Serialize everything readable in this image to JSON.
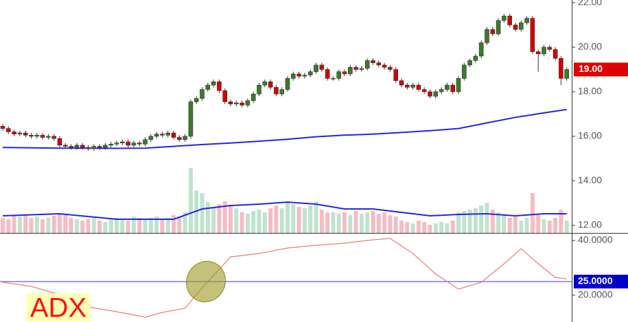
{
  "chart_data": [
    {
      "type": "candlestick",
      "open": [
        16.45,
        16.35,
        16.2,
        16.1,
        16.15,
        16.05,
        16.0,
        16.05,
        15.95,
        16.0,
        15.9,
        15.6,
        15.55,
        15.5,
        15.6,
        15.5,
        15.45,
        15.55,
        15.5,
        15.6,
        15.65,
        15.7,
        15.75,
        15.6,
        15.7,
        15.65,
        15.85,
        16.0,
        16.1,
        16.05,
        16.15,
        15.95,
        15.85,
        16.0,
        17.55,
        17.7,
        18.1,
        18.3,
        18.45,
        18.05,
        17.55,
        17.45,
        17.5,
        17.4,
        17.6,
        17.9,
        18.3,
        18.45,
        18.2,
        17.9,
        18.1,
        18.6,
        18.8,
        18.7,
        18.75,
        18.9,
        19.2,
        19.0,
        18.6,
        18.6,
        18.9,
        18.8,
        19.1,
        19.0,
        19.05,
        19.4,
        19.3,
        19.2,
        19.1,
        19.0,
        18.5,
        18.3,
        18.2,
        18.3,
        18.1,
        18.0,
        17.8,
        18.0,
        18.1,
        18.3,
        18.0,
        18.6,
        19.2,
        19.4,
        19.6,
        20.2,
        20.8,
        20.6,
        21.2,
        21.4,
        21.0,
        20.8,
        21.1,
        21.3,
        19.8,
        19.7,
        20.0,
        19.9,
        19.5,
        18.6
      ],
      "high": [
        16.55,
        16.45,
        16.3,
        16.25,
        16.25,
        16.15,
        16.15,
        16.15,
        16.1,
        16.1,
        16.0,
        15.7,
        15.65,
        15.7,
        15.7,
        15.6,
        15.65,
        15.65,
        15.7,
        15.75,
        15.8,
        15.85,
        15.85,
        15.8,
        15.8,
        15.95,
        16.1,
        16.2,
        16.2,
        16.25,
        16.25,
        16.05,
        16.1,
        17.65,
        17.8,
        18.2,
        18.4,
        18.55,
        18.55,
        18.15,
        17.65,
        17.6,
        17.6,
        17.7,
        18.0,
        18.4,
        18.55,
        18.55,
        18.3,
        18.2,
        18.7,
        18.9,
        18.9,
        18.85,
        19.0,
        19.3,
        19.3,
        19.1,
        18.7,
        19.0,
        19.0,
        19.2,
        19.2,
        19.15,
        19.5,
        19.5,
        19.4,
        19.3,
        19.2,
        19.1,
        18.6,
        18.4,
        18.4,
        18.4,
        18.2,
        18.1,
        18.1,
        18.2,
        18.4,
        18.4,
        18.7,
        19.3,
        19.5,
        19.7,
        20.3,
        20.9,
        20.9,
        21.3,
        21.5,
        21.5,
        21.1,
        21.2,
        21.4,
        21.4,
        19.9,
        20.1,
        20.1,
        20.0,
        19.6,
        19.1
      ],
      "low": [
        16.25,
        16.1,
        16.0,
        16.0,
        15.95,
        15.9,
        15.9,
        15.85,
        15.85,
        15.8,
        15.5,
        15.45,
        15.4,
        15.4,
        15.4,
        15.35,
        15.35,
        15.4,
        15.4,
        15.5,
        15.55,
        15.6,
        15.5,
        15.5,
        15.55,
        15.55,
        15.75,
        15.9,
        15.95,
        15.95,
        15.85,
        15.75,
        15.75,
        15.9,
        17.45,
        17.6,
        18.0,
        18.2,
        17.95,
        17.45,
        17.35,
        17.35,
        17.3,
        17.3,
        17.5,
        17.8,
        18.2,
        18.1,
        17.8,
        17.8,
        18.0,
        18.5,
        18.6,
        18.6,
        18.65,
        18.8,
        18.9,
        18.5,
        18.5,
        18.5,
        18.7,
        18.7,
        18.9,
        18.9,
        18.95,
        19.2,
        19.1,
        19.0,
        18.9,
        18.4,
        18.2,
        18.1,
        18.1,
        18.0,
        17.9,
        17.7,
        17.7,
        17.9,
        18.0,
        17.9,
        17.9,
        18.5,
        19.1,
        19.3,
        19.5,
        20.1,
        20.5,
        20.5,
        21.1,
        20.9,
        20.7,
        20.7,
        21.0,
        19.7,
        18.9,
        19.6,
        19.8,
        19.4,
        18.3,
        18.5
      ],
      "close": [
        16.35,
        16.2,
        16.1,
        16.15,
        16.05,
        16.0,
        16.05,
        15.95,
        16.0,
        15.9,
        15.6,
        15.55,
        15.5,
        15.6,
        15.5,
        15.45,
        15.55,
        15.5,
        15.6,
        15.65,
        15.7,
        15.75,
        15.6,
        15.7,
        15.65,
        15.85,
        16.0,
        16.1,
        16.05,
        16.15,
        15.95,
        15.85,
        16.0,
        17.55,
        17.7,
        18.1,
        18.3,
        18.45,
        18.05,
        17.55,
        17.45,
        17.5,
        17.4,
        17.6,
        17.9,
        18.3,
        18.45,
        18.2,
        17.9,
        18.1,
        18.6,
        18.8,
        18.7,
        18.75,
        18.9,
        19.2,
        19.0,
        18.6,
        18.6,
        18.9,
        18.8,
        19.1,
        19.0,
        19.05,
        19.4,
        19.3,
        19.2,
        19.1,
        19.0,
        18.5,
        18.3,
        18.2,
        18.3,
        18.1,
        18.0,
        17.8,
        18.0,
        18.1,
        18.3,
        18.0,
        18.6,
        19.2,
        19.4,
        19.6,
        20.2,
        20.8,
        20.6,
        21.2,
        21.4,
        21.0,
        20.8,
        21.1,
        21.3,
        19.8,
        19.7,
        20.0,
        19.9,
        19.5,
        18.6,
        19.0
      ],
      "up_color": "#3b7a2a",
      "down_color": "#d50000",
      "ylim": [
        11.66,
        22.12
      ],
      "yticks": [
        {
          "value": 12,
          "label": "12.00"
        },
        {
          "value": 14,
          "label": "14.00"
        },
        {
          "value": 16,
          "label": "16.00"
        },
        {
          "value": 18,
          "label": "18.00"
        },
        {
          "value": 20,
          "label": "20.00"
        },
        {
          "value": 22,
          "label": "22.00"
        }
      ],
      "moving_average": {
        "x": [
          0,
          10,
          20,
          25,
          30,
          35,
          40,
          45,
          50,
          55,
          60,
          65,
          70,
          75,
          80,
          85,
          90,
          95,
          99
        ],
        "values": [
          15.5,
          15.47,
          15.46,
          15.47,
          15.55,
          15.63,
          15.7,
          15.78,
          15.87,
          15.98,
          16.05,
          16.1,
          16.17,
          16.25,
          16.35,
          16.6,
          16.85,
          17.05,
          17.2
        ],
        "color": "#2424e0"
      },
      "volume": {
        "values": [
          22,
          20,
          25,
          24,
          26,
          22,
          24,
          20,
          22,
          25,
          28,
          26,
          22,
          20,
          18,
          20,
          22,
          18,
          16,
          20,
          22,
          20,
          18,
          24,
          22,
          20,
          22,
          24,
          20,
          22,
          26,
          24,
          30,
          95,
          62,
          58,
          45,
          38,
          42,
          46,
          40,
          36,
          30,
          28,
          32,
          34,
          30,
          36,
          40,
          36,
          44,
          42,
          38,
          36,
          40,
          46,
          34,
          30,
          30,
          28,
          30,
          26,
          32,
          28,
          30,
          32,
          28,
          30,
          26,
          24,
          18,
          16,
          14,
          18,
          16,
          12,
          14,
          16,
          14,
          18,
          30,
          32,
          34,
          36,
          40,
          44,
          34,
          30,
          26,
          22,
          24,
          18,
          22,
          58,
          26,
          20,
          18,
          22,
          34,
          18
        ],
        "up_color": "#bfe3cf",
        "down_color": "#f5bcc4",
        "moving_average": {
          "x": [
            0,
            10,
            20,
            30,
            35,
            40,
            45,
            50,
            55,
            60,
            65,
            70,
            75,
            80,
            85,
            90,
            95,
            99
          ],
          "values": [
            25,
            28,
            20,
            20,
            35,
            40,
            42,
            45,
            42,
            35,
            35,
            30,
            25,
            27,
            28,
            25,
            28,
            28
          ],
          "color": "#2424e0"
        }
      },
      "last_price": {
        "value": 19,
        "label": "19.00",
        "color": "#e00000"
      }
    },
    {
      "type": "line",
      "annotation": "ADX",
      "x": [
        0,
        5,
        10,
        15,
        20,
        25,
        28,
        32,
        35,
        40,
        45,
        50,
        55,
        60,
        65,
        68,
        72,
        76,
        80,
        84,
        88,
        91,
        94,
        97,
        99
      ],
      "values": [
        24.75,
        23.25,
        20.25,
        15.75,
        14,
        12,
        13.75,
        15.25,
        22.75,
        34,
        35.25,
        37.25,
        38.25,
        39,
        40.25,
        40.75,
        35.25,
        27.75,
        22.25,
        24.75,
        31.5,
        37,
        31.5,
        26.5,
        26
      ],
      "color": "#f07a7a",
      "ylim": [
        10.25,
        42.5
      ],
      "yticks": [
        {
          "value": 20,
          "label": "20.0000"
        },
        {
          "value": 40,
          "label": "40.0000"
        }
      ],
      "reference_line": {
        "value": 25,
        "label": "25.0000",
        "color": "#5c5cff"
      }
    }
  ]
}
